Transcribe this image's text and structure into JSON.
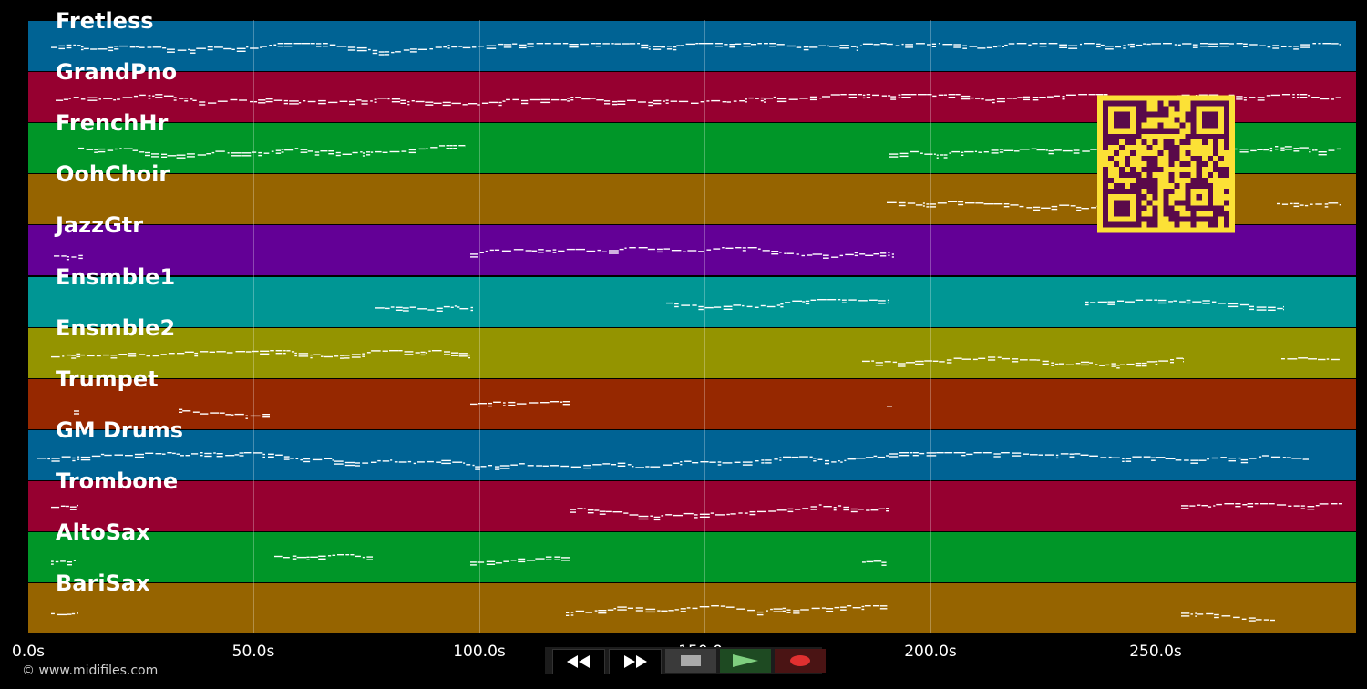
{
  "tracks": [
    {
      "name": "Fretless",
      "color": "#006394"
    },
    {
      "name": "GrandPno",
      "color": "#960030"
    },
    {
      "name": "FrenchHr",
      "color": "#009628"
    },
    {
      "name": "OohChoir",
      "color": "#966400"
    },
    {
      "name": "JazzGtr",
      "color": "#630096"
    },
    {
      "name": "Ensmble1",
      "color": "#009694"
    },
    {
      "name": "Ensmble2",
      "color": "#949400"
    },
    {
      "name": "Trumpet",
      "color": "#962800"
    },
    {
      "name": "GM Drums",
      "color": "#006394"
    },
    {
      "name": "Trombone",
      "color": "#960030"
    },
    {
      "name": "AltoSax",
      "color": "#009628"
    },
    {
      "name": "BariSax",
      "color": "#966400"
    }
  ],
  "timeline": {
    "ticks": [
      "0.0s",
      "50.0s",
      "100.0s",
      "150.0s",
      "200.0s",
      "250.0s"
    ]
  },
  "transport": {
    "rewind_icon": "rewind-icon",
    "forward_icon": "fast-forward-icon",
    "stop_icon": "stop-icon",
    "play_icon": "play-icon",
    "record_icon": "record-icon",
    "play_color": "#7fcf7f",
    "record_color": "#e03030"
  },
  "footer": {
    "copyright": "© www.midifiles.com"
  },
  "qr": {
    "icon": "qr-code-icon",
    "fg_color": "#fce136",
    "bg_color": "#5a0a4a"
  }
}
